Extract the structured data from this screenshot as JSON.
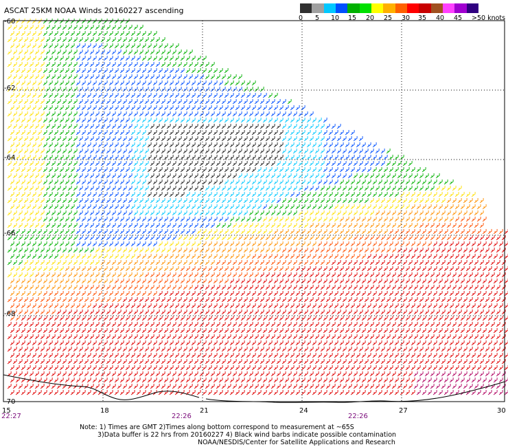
{
  "title": "ASCAT 25KM NOAA Winds 20160227 ascending",
  "legend": {
    "colors": [
      "#303030",
      "#a0a0a0",
      "#00c8ff",
      "#0050ff",
      "#00b000",
      "#00e000",
      "#ffff00",
      "#ffb000",
      "#ff6000",
      "#ff0000",
      "#c80000",
      "#a05020",
      "#ff40ff",
      "#a000d0",
      "#300080"
    ],
    "labels": [
      "0",
      "5",
      "10",
      "15",
      "20",
      "25",
      "30",
      "35",
      "40",
      "45",
      ">50 knots"
    ]
  },
  "lat_labels": [
    "-60",
    "-62",
    "-64",
    "-66",
    "-68",
    "-70"
  ],
  "lon_labels": [
    "15",
    "18",
    "21",
    "24",
    "27",
    "30"
  ],
  "time_labels": [
    "22:27",
    "22:26",
    "22:26"
  ],
  "notes": {
    "line1": "Note: 1) Times are GMT 2)Times along bottom correspond to measurement at ~65S",
    "line2": "3)Data buffer is 22 hrs from 20160227 4) Black wind barbs indicate possible contamination",
    "line3": "NOAA/NESDIS/Center for Satellite Applications and Research"
  }
}
